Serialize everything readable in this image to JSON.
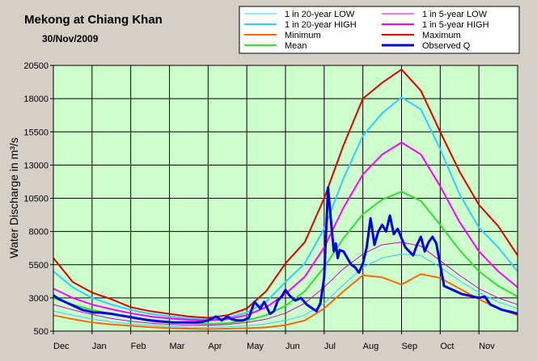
{
  "chart_data": {
    "type": "line",
    "title": "Mekong at Chiang Khan",
    "subtitle": "30/Nov/2009",
    "ylabel": "Water Discharge in m³/s",
    "ylim": [
      500,
      20500
    ],
    "yticks": [
      "500",
      "3000",
      "5500",
      "8000",
      "10500",
      "13000",
      "15500",
      "18000",
      "20500"
    ],
    "ytick_values": [
      500,
      3000,
      5500,
      8000,
      10500,
      13000,
      15500,
      18000,
      20500
    ],
    "xticks": [
      "Dec",
      "Jan",
      "Feb",
      "Mar",
      "Apr",
      "May",
      "Jun",
      "Jul",
      "Aug",
      "Sep",
      "Oct",
      "Nov"
    ],
    "x_range_months": [
      0,
      12
    ],
    "grid": true,
    "legend_placement": "top-right",
    "colors": {
      "plot_bg": "#ccffcc",
      "frame_bg": "#d4d0c8"
    },
    "series": [
      {
        "name": "1 in 20-year LOW",
        "color": "#33ccff",
        "width": 1,
        "x": [
          0,
          0.5,
          1,
          1.5,
          2,
          2.5,
          3,
          3.5,
          4,
          4.5,
          5,
          5.5,
          6,
          6.5,
          7,
          7.5,
          8,
          8.5,
          9,
          9.5,
          10,
          10.5,
          11,
          11.5,
          12
        ],
        "values": [
          2000,
          1700,
          1400,
          1200,
          1050,
          950,
          850,
          800,
          780,
          820,
          900,
          1050,
          1300,
          1700,
          2600,
          4000,
          5300,
          6000,
          6300,
          6200,
          5300,
          4300,
          3400,
          2700,
          2200
        ]
      },
      {
        "name": "1 in 5-year LOW",
        "color": "#cc00cc",
        "width": 1,
        "x": [
          0,
          0.5,
          1,
          1.5,
          2,
          2.5,
          3,
          3.5,
          4,
          4.5,
          5,
          5.5,
          6,
          6.5,
          7,
          7.5,
          8,
          8.5,
          9,
          9.5,
          10,
          10.5,
          11,
          11.5,
          12
        ],
        "values": [
          2500,
          2100,
          1750,
          1450,
          1250,
          1100,
          1000,
          950,
          950,
          1000,
          1150,
          1400,
          1850,
          2600,
          3800,
          5200,
          6300,
          7000,
          7200,
          6900,
          5800,
          4700,
          3700,
          3000,
          2500
        ]
      },
      {
        "name": "1 in 20-year HIGH",
        "color": "#33ccff",
        "width": 2,
        "x": [
          0,
          0.5,
          1,
          1.5,
          2,
          2.5,
          3,
          3.5,
          4,
          4.5,
          5,
          5.5,
          6,
          6.5,
          7,
          7.5,
          8,
          8.5,
          9,
          9.5,
          10,
          10.5,
          11,
          11.5,
          12
        ],
        "values": [
          5000,
          3800,
          3000,
          2500,
          2100,
          1800,
          1600,
          1450,
          1350,
          1500,
          1900,
          2700,
          4200,
          5600,
          8200,
          12000,
          15200,
          16900,
          18100,
          17200,
          14200,
          10800,
          8300,
          6800,
          5000
        ]
      },
      {
        "name": "1 in 5-year HIGH",
        "color": "#ff00ff",
        "width": 2,
        "x": [
          0,
          0.5,
          1,
          1.5,
          2,
          2.5,
          3,
          3.5,
          4,
          4.5,
          5,
          5.5,
          6,
          6.5,
          7,
          7.5,
          8,
          8.5,
          9,
          9.5,
          10,
          10.5,
          11,
          11.5,
          12
        ],
        "values": [
          3700,
          3000,
          2500,
          2150,
          1850,
          1600,
          1450,
          1350,
          1300,
          1400,
          1700,
          2300,
          3300,
          4600,
          6800,
          9800,
          12300,
          13800,
          14700,
          13800,
          11400,
          8700,
          6500,
          5000,
          3800
        ]
      },
      {
        "name": "Minimum",
        "color": "#ff6600",
        "width": 2,
        "x": [
          0,
          0.5,
          1,
          1.5,
          2,
          2.5,
          3,
          3.5,
          4,
          4.5,
          5,
          5.5,
          6,
          6.5,
          7,
          7.5,
          8,
          8.5,
          9,
          9.5,
          10,
          10.5,
          11,
          11.5,
          12
        ],
        "values": [
          1700,
          1400,
          1150,
          1000,
          900,
          800,
          720,
          680,
          650,
          680,
          720,
          780,
          950,
          1300,
          2200,
          3500,
          4700,
          4550,
          4000,
          4800,
          4500,
          3700,
          2900,
          2200,
          1700
        ]
      },
      {
        "name": "Maximum",
        "color": "#dd0000",
        "width": 2,
        "x": [
          0,
          0.5,
          1,
          1.5,
          2,
          2.5,
          3,
          3.5,
          4,
          4.5,
          5,
          5.5,
          6,
          6.5,
          7,
          7.5,
          8,
          8.5,
          9,
          9.5,
          10,
          10.5,
          11,
          11.5,
          12
        ],
        "values": [
          6000,
          4200,
          3400,
          2900,
          2300,
          2000,
          1800,
          1600,
          1500,
          1700,
          2200,
          3500,
          5600,
          7200,
          10500,
          14500,
          18000,
          19200,
          20200,
          18600,
          15500,
          12500,
          10000,
          8400,
          6200
        ]
      },
      {
        "name": "Mean",
        "color": "#33dd33",
        "width": 2,
        "x": [
          0,
          0.5,
          1,
          1.5,
          2,
          2.5,
          3,
          3.5,
          4,
          4.5,
          5,
          5.5,
          6,
          6.5,
          7,
          7.5,
          8,
          8.5,
          9,
          9.5,
          10,
          10.5,
          11,
          11.5,
          12
        ],
        "values": [
          3000,
          2500,
          2100,
          1800,
          1550,
          1350,
          1200,
          1100,
          1050,
          1100,
          1300,
          1700,
          2400,
          3500,
          5300,
          7500,
          9300,
          10400,
          11000,
          10300,
          8500,
          6600,
          5000,
          3900,
          3100
        ]
      },
      {
        "name": "Observed Q",
        "color": "#0000dd",
        "width": 3,
        "x": [
          0,
          0.15,
          0.3,
          0.45,
          0.6,
          0.75,
          0.9,
          1.05,
          1.2,
          1.35,
          1.5,
          1.7,
          1.9,
          2.1,
          2.3,
          2.5,
          2.7,
          2.9,
          3.1,
          3.3,
          3.5,
          3.7,
          3.85,
          4,
          4.2,
          4.35,
          4.5,
          4.6,
          4.75,
          4.9,
          5.05,
          5.2,
          5.35,
          5.45,
          5.6,
          5.7,
          5.8,
          5.9,
          6,
          6.1,
          6.25,
          6.4,
          6.55,
          6.7,
          6.8,
          6.9,
          7,
          7.1,
          7.2,
          7.25,
          7.3,
          7.35,
          7.4,
          7.5,
          7.6,
          7.7,
          7.8,
          7.9,
          8,
          8.1,
          8.2,
          8.3,
          8.4,
          8.5,
          8.6,
          8.7,
          8.8,
          8.9,
          9,
          9.1,
          9.2,
          9.3,
          9.4,
          9.5,
          9.6,
          9.7,
          9.8,
          9.9,
          10,
          10.1,
          10.25,
          10.4,
          10.55,
          10.7,
          10.85,
          11,
          11.15,
          11.3,
          11.45,
          11.6,
          11.75,
          11.9,
          12
        ],
        "values": [
          3200,
          2900,
          2700,
          2500,
          2300,
          2100,
          2000,
          1900,
          1900,
          1850,
          1800,
          1700,
          1600,
          1500,
          1400,
          1300,
          1250,
          1200,
          1150,
          1150,
          1150,
          1150,
          1200,
          1300,
          1600,
          1300,
          1600,
          1400,
          1300,
          1300,
          1500,
          2700,
          2200,
          2700,
          1800,
          2000,
          2800,
          3100,
          3600,
          3200,
          2800,
          3000,
          2500,
          2200,
          2000,
          2600,
          4500,
          11300,
          8000,
          6500,
          7100,
          6000,
          6600,
          6500,
          6000,
          5500,
          5300,
          4900,
          5600,
          6800,
          9000,
          7000,
          8000,
          8500,
          8000,
          9200,
          7800,
          8200,
          7500,
          6800,
          6500,
          6200,
          7000,
          7600,
          6500,
          7200,
          7600,
          7100,
          5500,
          3900,
          3700,
          3500,
          3300,
          3200,
          3100,
          3000,
          3100,
          2500,
          2300,
          2100,
          2000,
          1900,
          1800
        ]
      }
    ]
  }
}
